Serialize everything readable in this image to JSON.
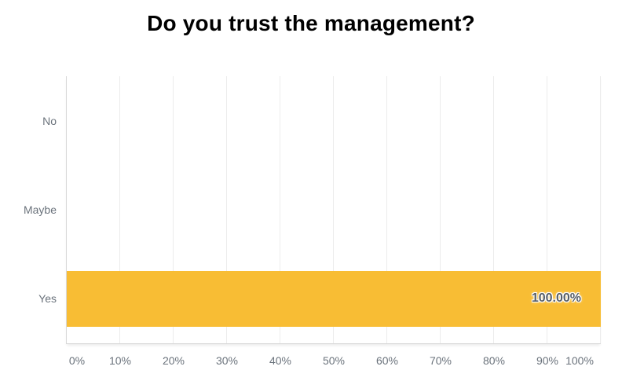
{
  "page": {
    "background_color": "#ffffff"
  },
  "chart_data": {
    "type": "bar",
    "orientation": "horizontal",
    "title": "Do you trust the management?",
    "categories": [
      "No",
      "Maybe",
      "Yes"
    ],
    "values": [
      0,
      0,
      100
    ],
    "value_labels": [
      "",
      "",
      "100.00%"
    ],
    "x_tick_labels": [
      "0%",
      "10%",
      "20%",
      "30%",
      "40%",
      "50%",
      "60%",
      "70%",
      "80%",
      "90%",
      "100%"
    ],
    "xlim": [
      0,
      100
    ],
    "xlabel": "",
    "ylabel": "",
    "grid": true,
    "legend": false,
    "colors": {
      "bar": "#F8BD34",
      "gridline": "#ececec",
      "axis_line": "#d8d8d8",
      "tick_text": "#6b737c",
      "value_text": "#575e66",
      "title_text": "#000000"
    }
  }
}
